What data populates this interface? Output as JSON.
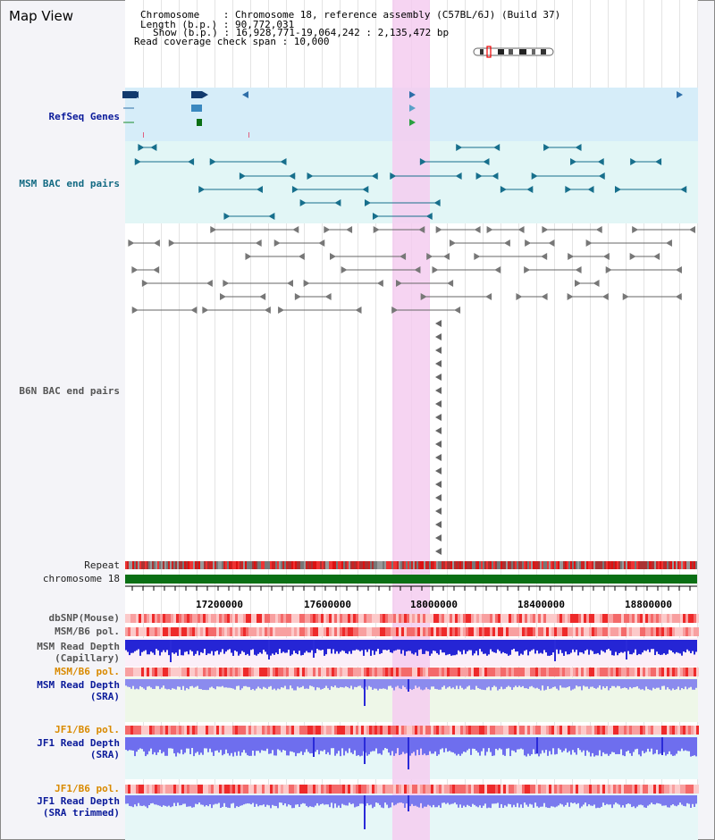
{
  "view": {
    "title": "Map View"
  },
  "header": {
    "chromosome_label": "Chromosome    : Chromosome 18, reference assembly (C57BL/6J) (Build 37)",
    "length_label": "Length (b.p.) : 90,772,031",
    "show_label": "Show (b.p.) : 16,928,771-19,064,242 : 2,135,472 bp",
    "coverage_label": "Read coverage check span : 10,000"
  },
  "tracks": {
    "refseq": "RefSeq Genes",
    "msm_bac": "MSM BAC end pairs",
    "b6n_bac": "B6N BAC end pairs",
    "repeat": "Repeat",
    "chromosome": "chromosome 18",
    "dbsnp": "dbSNP(Mouse)",
    "msm_b6_pol": "MSM/B6 pol.",
    "msm_depth_cap_1": "MSM Read Depth",
    "msm_depth_cap_2": "(Capillary)",
    "msm_b6_pol_2": "MSM/B6 pol.",
    "msm_depth_sra_1": "MSM Read Depth",
    "msm_depth_sra_2": "(SRA)",
    "jf1_b6_pol": "JF1/B6 pol.",
    "jf1_depth_sra_1": "JF1 Read Depth",
    "jf1_depth_sra_2": "(SRA)",
    "jf1_b6_pol_2": "JF1/B6 pol.",
    "jf1_depth_trim_1": "JF1 Read Depth",
    "jf1_depth_trim_2": "(SRA trimmed)"
  },
  "axis": {
    "ticks": [
      "17200000",
      "17600000",
      "18000000",
      "18400000",
      "18800000"
    ]
  },
  "colors": {
    "refseq_bg": "#d8eef9",
    "msm_bac_bg": "#e2f6f6",
    "depth_bg": "#fbeef8",
    "sra_bg": "#eef7e8",
    "chrom_green": "#0a6f14",
    "pol_red": "#ee3322",
    "depth_blue": "#2222dd",
    "highlight": "#f5cdf0"
  }
}
